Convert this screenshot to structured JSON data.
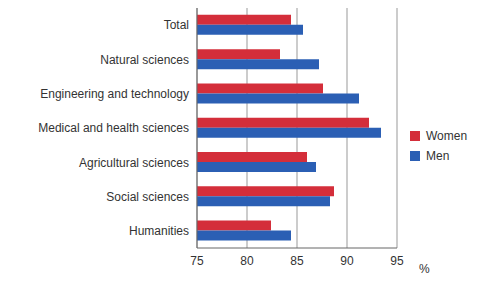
{
  "chart_data": {
    "type": "bar",
    "orientation": "horizontal",
    "categories": [
      "Total",
      "Natural sciences",
      "Engineering and technology",
      "Medical and health sciences",
      "Agricultural sciences",
      "Social sciences",
      "Humanities"
    ],
    "series": [
      {
        "name": "Women",
        "color": "#d42e3a",
        "values": [
          84.4,
          83.3,
          87.6,
          92.2,
          86.0,
          88.7,
          82.4
        ]
      },
      {
        "name": "Men",
        "color": "#2b5fb4",
        "values": [
          85.6,
          87.2,
          91.2,
          93.4,
          86.9,
          88.3,
          84.4
        ]
      }
    ],
    "x_label": "%",
    "xlim": [
      75,
      95
    ],
    "xticks": [
      75,
      80,
      85,
      90,
      95
    ],
    "grid": true,
    "legend": "right"
  }
}
